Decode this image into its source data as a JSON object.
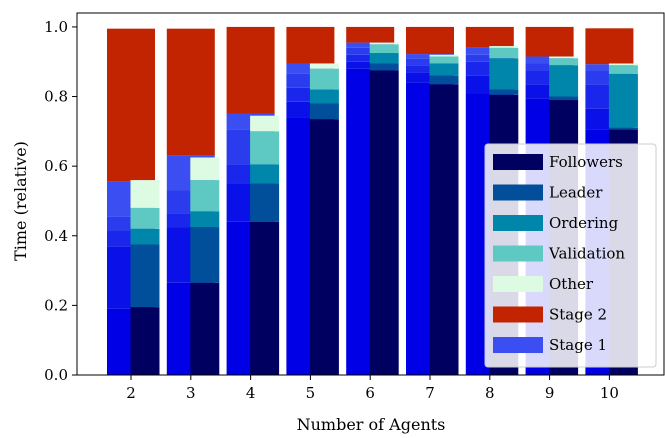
{
  "chart_data": {
    "type": "bar",
    "xlabel": "Number of Agents",
    "ylabel": "Time (relative)",
    "categories": [
      "2",
      "3",
      "4",
      "5",
      "6",
      "7",
      "8",
      "9",
      "10"
    ],
    "ylim": [
      0,
      1.04
    ],
    "yticks": [
      0.0,
      0.2,
      0.4,
      0.6,
      0.8,
      1.0
    ],
    "ytick_labels": [
      "0.0",
      "0.2",
      "0.4",
      "0.6",
      "0.8",
      "1.0"
    ],
    "grid": false,
    "legend_position": "lower-right",
    "stage_stacks": [
      {
        "name": "Stage 1",
        "color": "#0000e6",
        "segment_colors": [
          "#0000e6",
          "#0a10e8",
          "#1a26eb",
          "#2a3cee",
          "#3a4ef1"
        ],
        "segments": [
          [
            0.19,
            0.18,
            0.045,
            0.04,
            0.1
          ],
          [
            0.265,
            0.16,
            0.04,
            0.065,
            0.1
          ],
          [
            0.44,
            0.11,
            0.055,
            0.1,
            0.045
          ],
          [
            0.74,
            0.045,
            0.04,
            0.04,
            0.03
          ],
          [
            0.88,
            0.02,
            0.02,
            0.02,
            0.015
          ],
          [
            0.84,
            0.03,
            0.02,
            0.02,
            0.012
          ],
          [
            0.81,
            0.05,
            0.04,
            0.02,
            0.02
          ],
          [
            0.795,
            0.04,
            0.04,
            0.02,
            0.02
          ],
          [
            0.705,
            0.06,
            0.07,
            0.04,
            0.018
          ]
        ]
      },
      {
        "name": "Stage 2",
        "color": "#c22301",
        "values": [
          0.44,
          0.365,
          0.25,
          0.105,
          0.045,
          0.078,
          0.06,
          0.085,
          0.103
        ]
      }
    ],
    "series": [
      {
        "name": "Followers",
        "color": "#000060",
        "values": [
          0.195,
          0.265,
          0.44,
          0.735,
          0.875,
          0.835,
          0.805,
          0.79,
          0.705
        ]
      },
      {
        "name": "Leader",
        "color": "#014f9b",
        "values": [
          0.18,
          0.16,
          0.11,
          0.045,
          0.02,
          0.025,
          0.015,
          0.01,
          0.005
        ]
      },
      {
        "name": "Ordering",
        "color": "#0086aa",
        "values": [
          0.045,
          0.045,
          0.055,
          0.04,
          0.03,
          0.035,
          0.09,
          0.09,
          0.155
        ]
      },
      {
        "name": "Validation",
        "color": "#5ec8c2",
        "values": [
          0.06,
          0.09,
          0.095,
          0.06,
          0.025,
          0.02,
          0.03,
          0.02,
          0.025
        ]
      },
      {
        "name": "Other",
        "color": "#ddfbe3",
        "values": [
          0.08,
          0.065,
          0.045,
          0.015,
          0.005,
          0.005,
          0.005,
          0.005,
          0.005
        ]
      }
    ],
    "legend": [
      {
        "label": "Followers",
        "color": "#000060"
      },
      {
        "label": "Leader",
        "color": "#014f9b"
      },
      {
        "label": "Ordering",
        "color": "#0086aa"
      },
      {
        "label": "Validation",
        "color": "#5ec8c2"
      },
      {
        "label": "Other",
        "color": "#ddfbe3"
      },
      {
        "label": "Stage 2",
        "color": "#c22301"
      },
      {
        "label": "Stage 1",
        "color": "#3a4ef1"
      }
    ]
  }
}
